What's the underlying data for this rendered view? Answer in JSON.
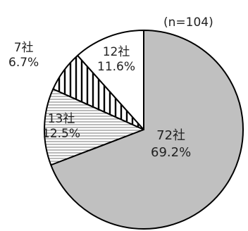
{
  "chart_data": {
    "type": "pie",
    "note": "(n=104)",
    "start": "12 o'clock",
    "direction": "clockwise",
    "slices": [
      {
        "count": "72社",
        "percent": "69.2%",
        "value": 69.2,
        "fill": "#c0c0c0",
        "pattern": "none"
      },
      {
        "count": "13社",
        "percent": "12.5%",
        "value": 12.5,
        "fill": "#ffffff",
        "pattern": "horizontal-lines"
      },
      {
        "count": "7社",
        "percent": "6.7%",
        "value": 6.7,
        "fill": "#ffffff",
        "pattern": "vertical-lines"
      },
      {
        "count": "12社",
        "percent": "11.6%",
        "value": 11.6,
        "fill": "#ffffff",
        "pattern": "none"
      }
    ]
  }
}
